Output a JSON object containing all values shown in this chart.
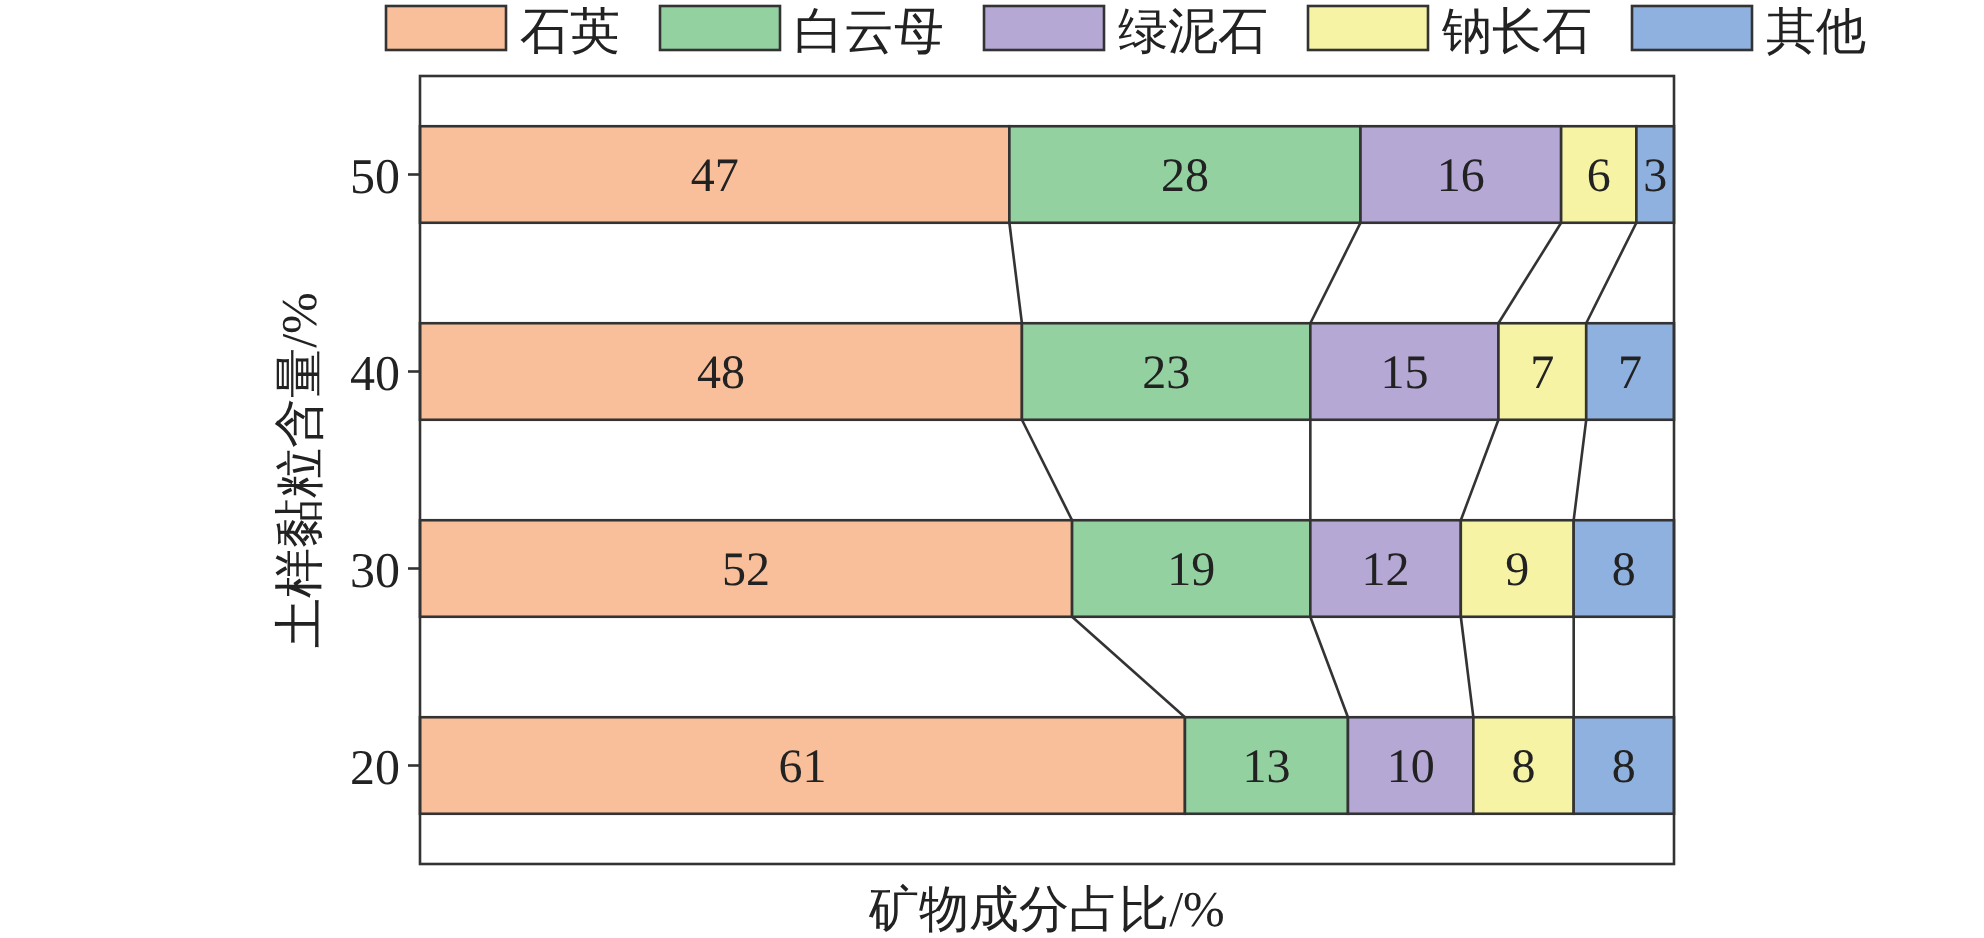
{
  "chart_data": {
    "type": "bar",
    "orientation": "horizontal",
    "stacked": true,
    "data_labels": true,
    "legend": "top",
    "tick_labels": "y",
    "xlabel": "矿物成分占比/%",
    "ylabel": "土样黏粒含量/%",
    "categories": [
      "50",
      "40",
      "30",
      "20"
    ],
    "series": [
      {
        "name": "石英",
        "color": "#f8bf9a",
        "values": [
          47,
          48,
          52,
          61
        ]
      },
      {
        "name": "白云母",
        "color": "#94d1a1",
        "values": [
          28,
          23,
          19,
          13
        ]
      },
      {
        "name": "绿泥石",
        "color": "#b5a8d4",
        "values": [
          16,
          15,
          12,
          10
        ]
      },
      {
        "name": "钠长石",
        "color": "#f6f3a4",
        "values": [
          6,
          7,
          9,
          8
        ]
      },
      {
        "name": "其他",
        "color": "#8fb1df",
        "values": [
          3,
          7,
          8,
          8
        ]
      }
    ]
  }
}
